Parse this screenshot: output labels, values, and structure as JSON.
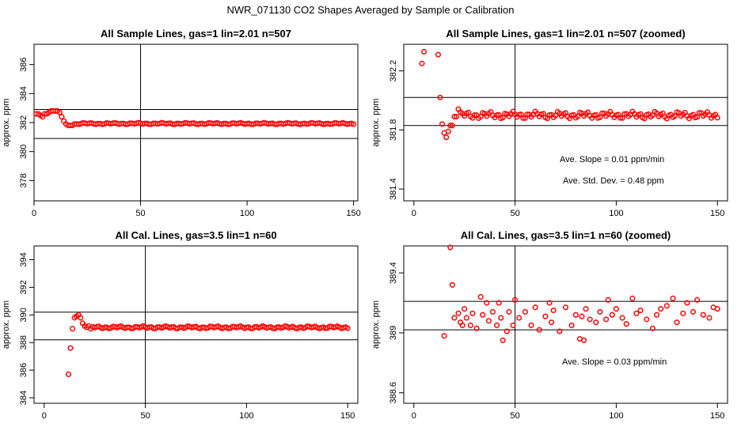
{
  "figure": {
    "title": "NWR_071130  CO2 Shapes Averaged by Sample or Calibration"
  },
  "colors": {
    "points": "#ff0000",
    "axes": "#000000",
    "background": "#ffffff"
  },
  "chart_data": [
    {
      "type": "scatter",
      "title": "All Sample Lines, gas=1 lin=2.01 n=507",
      "xlabel": "",
      "ylabel": "approx. ppm",
      "xlim": [
        0,
        152
      ],
      "ylim": [
        376.6,
        387.4
      ],
      "xticks": [
        0,
        50,
        100,
        150
      ],
      "yticks": [
        378,
        380,
        382,
        384,
        386
      ],
      "vline": 50,
      "hlines": [
        380.9,
        382.9
      ],
      "grid": false,
      "annotations": [],
      "series": [
        {
          "shape": "open-circle",
          "color": "#ff0000",
          "x": [
            1,
            2,
            3,
            4,
            5,
            6,
            7,
            8,
            9,
            10,
            11,
            12,
            13,
            14,
            15,
            16,
            17,
            18,
            19,
            20
          ],
          "y": [
            382.6,
            382.6,
            382.5,
            382.4,
            382.6,
            382.6,
            382.7,
            382.8,
            382.8,
            382.8,
            382.8,
            382.7,
            382.4,
            382.1,
            381.9,
            381.8,
            381.8,
            381.8,
            381.9,
            381.9
          ],
          "tail": {
            "x_start": 21,
            "x_end": 150,
            "center": 381.93,
            "amplitude": 0.06
          }
        }
      ]
    },
    {
      "type": "scatter",
      "title": "All Sample Lines, gas=1 lin=2.01 n=507 (zoomed)",
      "xlabel": "",
      "ylabel": "approx. ppm",
      "xlim": [
        -5,
        155
      ],
      "ylim": [
        381.32,
        382.38
      ],
      "xticks": [
        0,
        50,
        100,
        150
      ],
      "yticks": [
        381.4,
        381.8,
        382.2
      ],
      "vline": 50,
      "hlines": [
        382.02,
        381.83
      ],
      "grid": false,
      "annotations": [
        "Ave. Slope =  0.01  ppm/min",
        "Ave. Std. Dev. =  0.48  ppm"
      ],
      "series": [
        {
          "shape": "open-circle",
          "color": "#ff0000",
          "x": [
            4,
            5,
            12,
            13,
            14,
            15,
            16,
            17,
            18,
            19,
            20,
            21,
            22,
            23
          ],
          "y": [
            382.25,
            382.33,
            382.31,
            382.02,
            381.84,
            381.78,
            381.75,
            381.79,
            381.83,
            381.83,
            381.89,
            381.89,
            381.94,
            381.92
          ],
          "tail": {
            "x_start": 24,
            "x_end": 150,
            "center": 381.9,
            "amplitude": 0.025
          }
        }
      ]
    },
    {
      "type": "scatter",
      "title": "All Cal. Lines, gas=3.5 lin=1 n=60",
      "xlabel": "",
      "ylabel": "approx. ppm",
      "xlim": [
        -5,
        155
      ],
      "ylim": [
        383.6,
        395.0
      ],
      "xticks": [
        0,
        50,
        100,
        150
      ],
      "yticks": [
        384,
        386,
        388,
        390,
        392,
        394
      ],
      "vline": 50,
      "hlines": [
        390.2,
        388.2
      ],
      "grid": false,
      "annotations": [],
      "series": [
        {
          "shape": "open-circle",
          "color": "#ff0000",
          "x": [
            12,
            13,
            14,
            15,
            16,
            17,
            18,
            19,
            20,
            21,
            22,
            23
          ],
          "y": [
            385.7,
            387.6,
            389.0,
            389.8,
            389.9,
            390.0,
            389.8,
            389.4,
            389.2,
            389.1,
            389.2,
            389.0
          ],
          "tail": {
            "x_start": 24,
            "x_end": 150,
            "center": 389.1,
            "amplitude": 0.1
          }
        }
      ]
    },
    {
      "type": "scatter",
      "title": "All Cal. Lines, gas=3.5 lin=1 n=60 (zoomed)",
      "xlabel": "",
      "ylabel": "approx. ppm",
      "xlim": [
        -5,
        155
      ],
      "ylim": [
        388.53,
        389.58
      ],
      "xticks": [
        0,
        50,
        100,
        150
      ],
      "yticks": [
        388.6,
        389.0,
        389.4
      ],
      "vline": 50,
      "hlines": [
        389.21,
        389.02
      ],
      "grid": false,
      "annotations": [
        "Ave. Slope =  0.03  ppm/min"
      ],
      "series": [
        {
          "shape": "open-circle",
          "color": "#ff0000",
          "x": [
            15,
            18,
            19,
            20,
            22,
            23,
            24,
            25,
            26,
            28,
            29,
            31,
            33,
            34,
            36,
            37,
            39,
            41,
            42,
            43,
            44,
            46,
            47,
            49,
            50,
            52,
            55,
            58,
            60,
            62,
            65,
            67,
            68,
            69,
            72,
            75,
            78,
            80,
            82,
            83,
            84,
            85,
            87,
            90,
            92,
            95,
            96,
            98,
            100,
            103,
            105,
            108,
            110,
            112,
            115,
            118,
            120,
            122,
            125,
            128,
            130,
            133,
            135,
            138,
            140,
            143,
            146,
            148,
            150
          ],
          "y": [
            388.98,
            389.57,
            389.32,
            389.1,
            389.13,
            389.07,
            389.05,
            389.16,
            389.1,
            389.05,
            389.13,
            389.03,
            389.24,
            389.12,
            389.2,
            389.08,
            389.14,
            389.05,
            389.2,
            389.1,
            388.95,
            389.01,
            389.14,
            389.05,
            389.22,
            389.1,
            389.14,
            389.05,
            389.17,
            389.02,
            389.11,
            389.2,
            389.07,
            389.15,
            389.01,
            389.17,
            389.05,
            389.12,
            388.96,
            389.11,
            388.95,
            389.16,
            389.09,
            389.07,
            389.14,
            389.09,
            389.22,
            389.12,
            389.16,
            389.1,
            389.06,
            389.23,
            389.13,
            389.15,
            389.09,
            389.03,
            389.12,
            389.16,
            389.18,
            389.23,
            389.07,
            389.13,
            389.2,
            389.14,
            389.22,
            389.12,
            389.1,
            389.17,
            389.16
          ]
        }
      ]
    }
  ]
}
